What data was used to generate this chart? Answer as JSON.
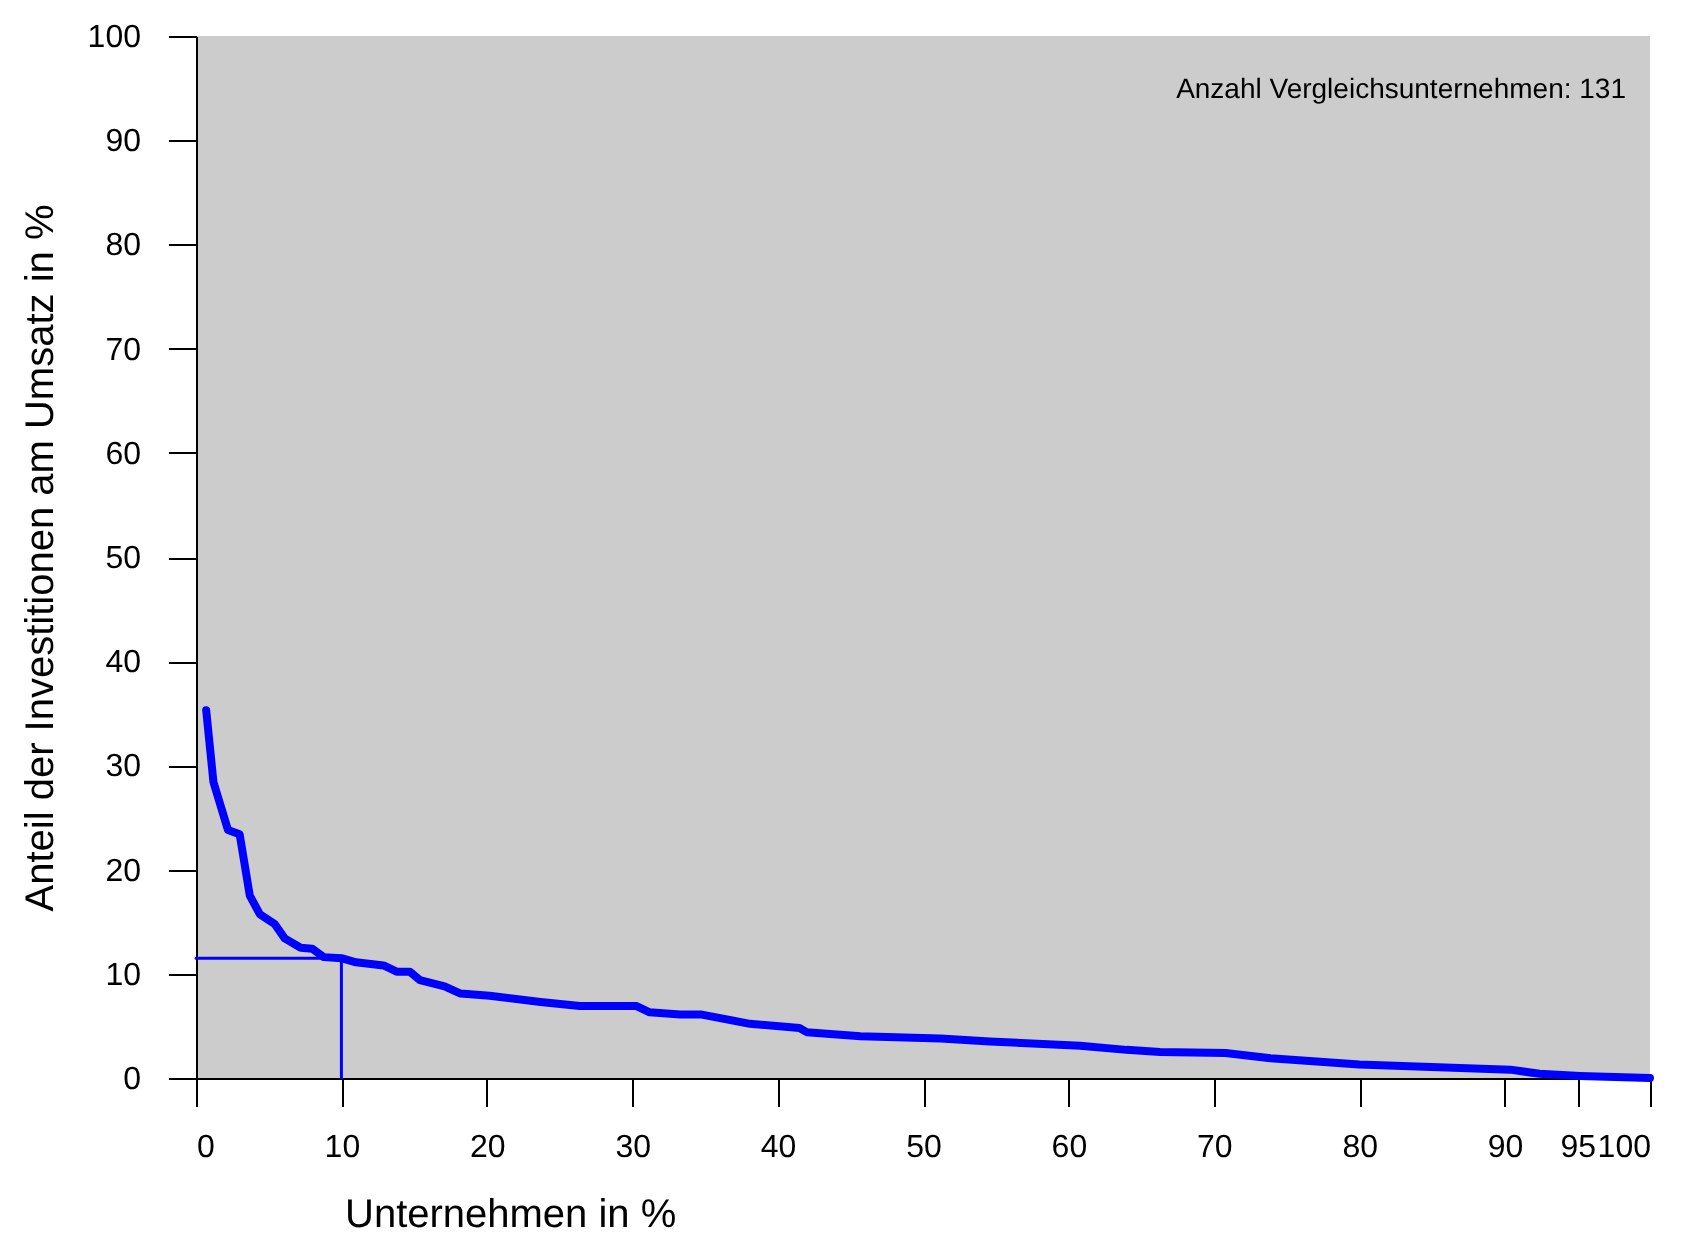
{
  "chart_data": {
    "type": "line",
    "xlabel": "Unternehmen in %",
    "ylabel": "Anteil der Investitionen am Umsatz in %",
    "annotations": [
      "Anzahl Vergleichsunternehmen: 131"
    ],
    "xlim": [
      0,
      100
    ],
    "ylim": [
      0,
      100
    ],
    "xticks": [
      0,
      10,
      20,
      30,
      40,
      50,
      60,
      70,
      80,
      90,
      95,
      100
    ],
    "yticks": [
      0,
      10,
      20,
      30,
      40,
      50,
      60,
      70,
      80,
      90,
      100
    ],
    "grid": false,
    "series": [
      {
        "color": "#0000ff",
        "x": [
          0.7,
          1.2,
          2.2,
          3.0,
          3.7,
          4.4,
          5.4,
          6.1,
          7.2,
          8.0,
          8.8,
          10,
          11,
          12.9,
          13.8,
          14.7,
          15.4,
          17.1,
          18.2,
          20.2,
          23.7,
          26.4,
          30.3,
          31.2,
          33.3,
          34.7,
          38.1,
          41.5,
          42,
          45.7,
          51.2,
          54.6,
          60.8,
          64,
          66.3,
          70.8,
          73.9,
          80,
          90.4,
          92.4,
          95.2,
          100
        ],
        "values": [
          35.3,
          28.4,
          23.8,
          23.4,
          17.5,
          15.7,
          14.8,
          13.4,
          12.5,
          12.4,
          11.6,
          11.5,
          11.1,
          10.8,
          10.2,
          10.2,
          9.4,
          8.8,
          8.1,
          7.9,
          7.3,
          6.9,
          6.9,
          6.3,
          6.1,
          6.1,
          5.2,
          4.8,
          4.4,
          4.0,
          3.8,
          3.5,
          3.1,
          2.7,
          2.5,
          2.4,
          1.9,
          1.3,
          0.8,
          0.4,
          0.2,
          0
        ]
      },
      {
        "color": "#0000ff",
        "x": [
          0,
          10,
          10
        ],
        "values": [
          11.5,
          11.5,
          0
        ]
      }
    ]
  }
}
